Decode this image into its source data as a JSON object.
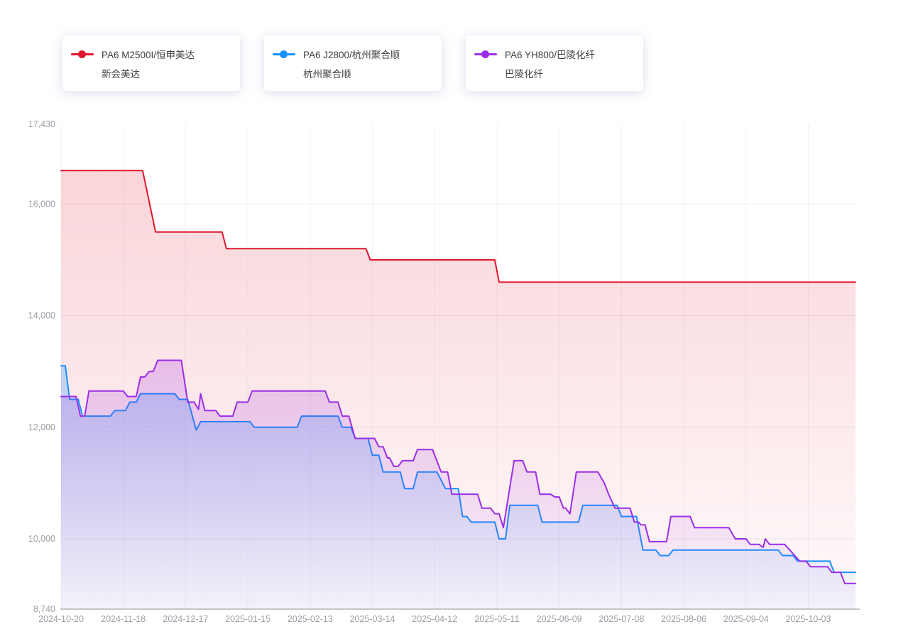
{
  "page": {
    "background": "#ffffff"
  },
  "chart_data": {
    "type": "line",
    "title": "",
    "legend_position": "top",
    "grid": true,
    "interpolation": "step-like daily price data, linear between breakpoints",
    "x_axis": {
      "min": "2024-10-20",
      "max": "2025-10-25",
      "tick_labels": [
        "2024-10-20",
        "2024-11-18",
        "2024-12-17",
        "2025-01-15",
        "2025-02-13",
        "2025-03-14",
        "2025-04-12",
        "2025-05-11",
        "2025-06-09",
        "2025-07-08",
        "2025-08-06",
        "2025-09-04",
        "2025-10-03"
      ]
    },
    "y_axis": {
      "min": 8740,
      "max": 17430,
      "ticks": [
        8740,
        10000,
        12000,
        14000,
        16000,
        17430
      ],
      "tick_labels": [
        "8,740",
        "10,000",
        "12,000",
        "14,000",
        "16,000",
        "17,430"
      ]
    },
    "series": [
      {
        "name": "PA6 M2500I/恒申美达",
        "company": "新会美达",
        "color": "#e0162d",
        "points": [
          [
            "2024-10-20",
            16600
          ],
          [
            "2024-11-27",
            16600
          ],
          [
            "2024-12-03",
            15500
          ],
          [
            "2025-01-03",
            15500
          ],
          [
            "2025-01-05",
            15200
          ],
          [
            "2025-03-11",
            15200
          ],
          [
            "2025-03-13",
            15000
          ],
          [
            "2025-05-10",
            15000
          ],
          [
            "2025-05-12",
            14600
          ],
          [
            "2025-10-25",
            14600
          ]
        ]
      },
      {
        "name": "PA6 J2800/杭州聚合顺",
        "company": "杭州聚合顺",
        "color": "#1890ff",
        "points": [
          [
            "2024-10-20",
            13100
          ],
          [
            "2024-10-22",
            13100
          ],
          [
            "2024-10-24",
            12500
          ],
          [
            "2024-10-28",
            12500
          ],
          [
            "2024-10-30",
            12200
          ],
          [
            "2024-11-12",
            12200
          ],
          [
            "2024-11-14",
            12300
          ],
          [
            "2024-11-19",
            12300
          ],
          [
            "2024-11-21",
            12450
          ],
          [
            "2024-11-24",
            12450
          ],
          [
            "2024-11-26",
            12600
          ],
          [
            "2024-12-12",
            12600
          ],
          [
            "2024-12-14",
            12500
          ],
          [
            "2024-12-18",
            12500
          ],
          [
            "2024-12-22",
            11950
          ],
          [
            "2024-12-24",
            12100
          ],
          [
            "2025-01-16",
            12100
          ],
          [
            "2025-01-18",
            12000
          ],
          [
            "2025-02-07",
            12000
          ],
          [
            "2025-02-09",
            12200
          ],
          [
            "2025-02-26",
            12200
          ],
          [
            "2025-02-28",
            12000
          ],
          [
            "2025-03-04",
            12000
          ],
          [
            "2025-03-06",
            11800
          ],
          [
            "2025-03-12",
            11800
          ],
          [
            "2025-03-14",
            11500
          ],
          [
            "2025-03-17",
            11500
          ],
          [
            "2025-03-19",
            11200
          ],
          [
            "2025-03-27",
            11200
          ],
          [
            "2025-03-29",
            10900
          ],
          [
            "2025-04-02",
            10900
          ],
          [
            "2025-04-04",
            11200
          ],
          [
            "2025-04-13",
            11200
          ],
          [
            "2025-04-17",
            10900
          ],
          [
            "2025-04-23",
            10900
          ],
          [
            "2025-04-25",
            10400
          ],
          [
            "2025-04-27",
            10400
          ],
          [
            "2025-04-29",
            10300
          ],
          [
            "2025-05-10",
            10300
          ],
          [
            "2025-05-12",
            10000
          ],
          [
            "2025-05-15",
            10000
          ],
          [
            "2025-05-17",
            10600
          ],
          [
            "2025-05-30",
            10600
          ],
          [
            "2025-06-01",
            10300
          ],
          [
            "2025-06-18",
            10300
          ],
          [
            "2025-06-20",
            10600
          ],
          [
            "2025-07-06",
            10600
          ],
          [
            "2025-07-08",
            10400
          ],
          [
            "2025-07-15",
            10400
          ],
          [
            "2025-07-18",
            9800
          ],
          [
            "2025-07-24",
            9800
          ],
          [
            "2025-07-26",
            9700
          ],
          [
            "2025-07-30",
            9700
          ],
          [
            "2025-08-01",
            9800
          ],
          [
            "2025-09-19",
            9800
          ],
          [
            "2025-09-21",
            9700
          ],
          [
            "2025-09-26",
            9700
          ],
          [
            "2025-09-28",
            9600
          ],
          [
            "2025-10-13",
            9600
          ],
          [
            "2025-10-15",
            9400
          ],
          [
            "2025-10-25",
            9400
          ]
        ]
      },
      {
        "name": "PA6 YH800/巴陵化纤",
        "company": "巴陵化纤",
        "color": "#9b2ee6",
        "points": [
          [
            "2024-10-20",
            12550
          ],
          [
            "2024-10-27",
            12550
          ],
          [
            "2024-10-29",
            12200
          ],
          [
            "2024-10-31",
            12200
          ],
          [
            "2024-11-02",
            12650
          ],
          [
            "2024-11-18",
            12650
          ],
          [
            "2024-11-20",
            12550
          ],
          [
            "2024-11-24",
            12550
          ],
          [
            "2024-11-26",
            12900
          ],
          [
            "2024-11-28",
            12900
          ],
          [
            "2024-11-30",
            13000
          ],
          [
            "2024-12-02",
            13000
          ],
          [
            "2024-12-04",
            13200
          ],
          [
            "2024-12-15",
            13200
          ],
          [
            "2024-12-18",
            12450
          ],
          [
            "2024-12-21",
            12450
          ],
          [
            "2024-12-23",
            12320
          ],
          [
            "2024-12-24",
            12600
          ],
          [
            "2024-12-26",
            12300
          ],
          [
            "2024-12-31",
            12300
          ],
          [
            "2025-01-02",
            12200
          ],
          [
            "2025-01-08",
            12200
          ],
          [
            "2025-01-10",
            12450
          ],
          [
            "2025-01-15",
            12450
          ],
          [
            "2025-01-17",
            12650
          ],
          [
            "2025-02-20",
            12650
          ],
          [
            "2025-02-22",
            12450
          ],
          [
            "2025-02-26",
            12450
          ],
          [
            "2025-02-28",
            12200
          ],
          [
            "2025-03-03",
            12200
          ],
          [
            "2025-03-06",
            11800
          ],
          [
            "2025-03-15",
            11800
          ],
          [
            "2025-03-17",
            11650
          ],
          [
            "2025-03-19",
            11650
          ],
          [
            "2025-03-21",
            11450
          ],
          [
            "2025-03-22",
            11450
          ],
          [
            "2025-03-24",
            11300
          ],
          [
            "2025-03-26",
            11300
          ],
          [
            "2025-03-28",
            11400
          ],
          [
            "2025-04-02",
            11400
          ],
          [
            "2025-04-04",
            11600
          ],
          [
            "2025-04-11",
            11600
          ],
          [
            "2025-04-15",
            11200
          ],
          [
            "2025-04-18",
            11200
          ],
          [
            "2025-04-20",
            10800
          ],
          [
            "2025-05-02",
            10800
          ],
          [
            "2025-05-04",
            10550
          ],
          [
            "2025-05-08",
            10550
          ],
          [
            "2025-05-10",
            10450
          ],
          [
            "2025-05-12",
            10450
          ],
          [
            "2025-05-14",
            10200
          ],
          [
            "2025-05-19",
            11400
          ],
          [
            "2025-05-23",
            11400
          ],
          [
            "2025-05-25",
            11200
          ],
          [
            "2025-05-29",
            11200
          ],
          [
            "2025-05-31",
            10800
          ],
          [
            "2025-06-05",
            10800
          ],
          [
            "2025-06-07",
            10750
          ],
          [
            "2025-06-09",
            10750
          ],
          [
            "2025-06-11",
            10550
          ],
          [
            "2025-06-12",
            10550
          ],
          [
            "2025-06-14",
            10450
          ],
          [
            "2025-06-17",
            11200
          ],
          [
            "2025-06-27",
            11200
          ],
          [
            "2025-06-30",
            11000
          ],
          [
            "2025-07-02",
            10800
          ],
          [
            "2025-07-05",
            10550
          ],
          [
            "2025-07-12",
            10550
          ],
          [
            "2025-07-14",
            10300
          ],
          [
            "2025-07-16",
            10300
          ],
          [
            "2025-07-17",
            10250
          ],
          [
            "2025-07-19",
            10250
          ],
          [
            "2025-07-21",
            9950
          ],
          [
            "2025-07-29",
            9950
          ],
          [
            "2025-07-31",
            10400
          ],
          [
            "2025-08-09",
            10400
          ],
          [
            "2025-08-11",
            10200
          ],
          [
            "2025-08-27",
            10200
          ],
          [
            "2025-08-30",
            10000
          ],
          [
            "2025-09-04",
            10000
          ],
          [
            "2025-09-06",
            9900
          ],
          [
            "2025-09-10",
            9900
          ],
          [
            "2025-09-12",
            9850
          ],
          [
            "2025-09-13",
            10000
          ],
          [
            "2025-09-15",
            9900
          ],
          [
            "2025-09-22",
            9900
          ],
          [
            "2025-09-29",
            9600
          ],
          [
            "2025-10-02",
            9600
          ],
          [
            "2025-10-04",
            9500
          ],
          [
            "2025-10-12",
            9500
          ],
          [
            "2025-10-14",
            9400
          ],
          [
            "2025-10-18",
            9400
          ],
          [
            "2025-10-20",
            9200
          ],
          [
            "2025-10-25",
            9200
          ]
        ]
      }
    ]
  }
}
